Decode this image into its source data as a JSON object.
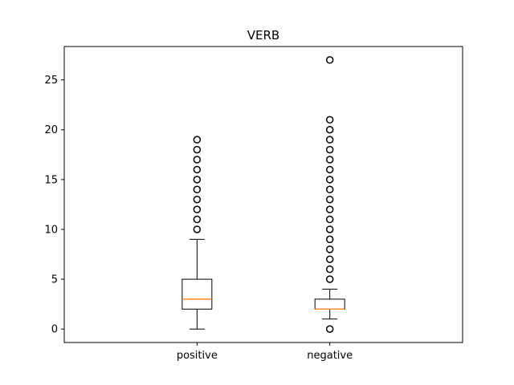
{
  "chart_data": {
    "type": "boxplot",
    "title": "VERB",
    "xlabel": "",
    "ylabel": "",
    "ylim": [
      -1.35,
      28.35
    ],
    "yticks": [
      0,
      5,
      10,
      15,
      20,
      25
    ],
    "categories": [
      "positive",
      "negative"
    ],
    "boxes": [
      {
        "label": "positive",
        "whisker_low": 0,
        "q1": 2,
        "median": 3,
        "q3": 5,
        "whisker_high": 9,
        "outliers": [
          10,
          11,
          12,
          13,
          14,
          15,
          16,
          17,
          18,
          19
        ]
      },
      {
        "label": "negative",
        "whisker_low": 1,
        "q1": 2,
        "median": 2,
        "q3": 3,
        "whisker_high": 4,
        "outliers": [
          0,
          5,
          6,
          7,
          8,
          9,
          10,
          11,
          12,
          13,
          14,
          15,
          16,
          17,
          18,
          19,
          20,
          21,
          27
        ]
      }
    ],
    "colors": {
      "box": "#000000",
      "median": "#ff7f0e",
      "outlier": "#000000"
    },
    "grid": false,
    "legend": "none"
  }
}
